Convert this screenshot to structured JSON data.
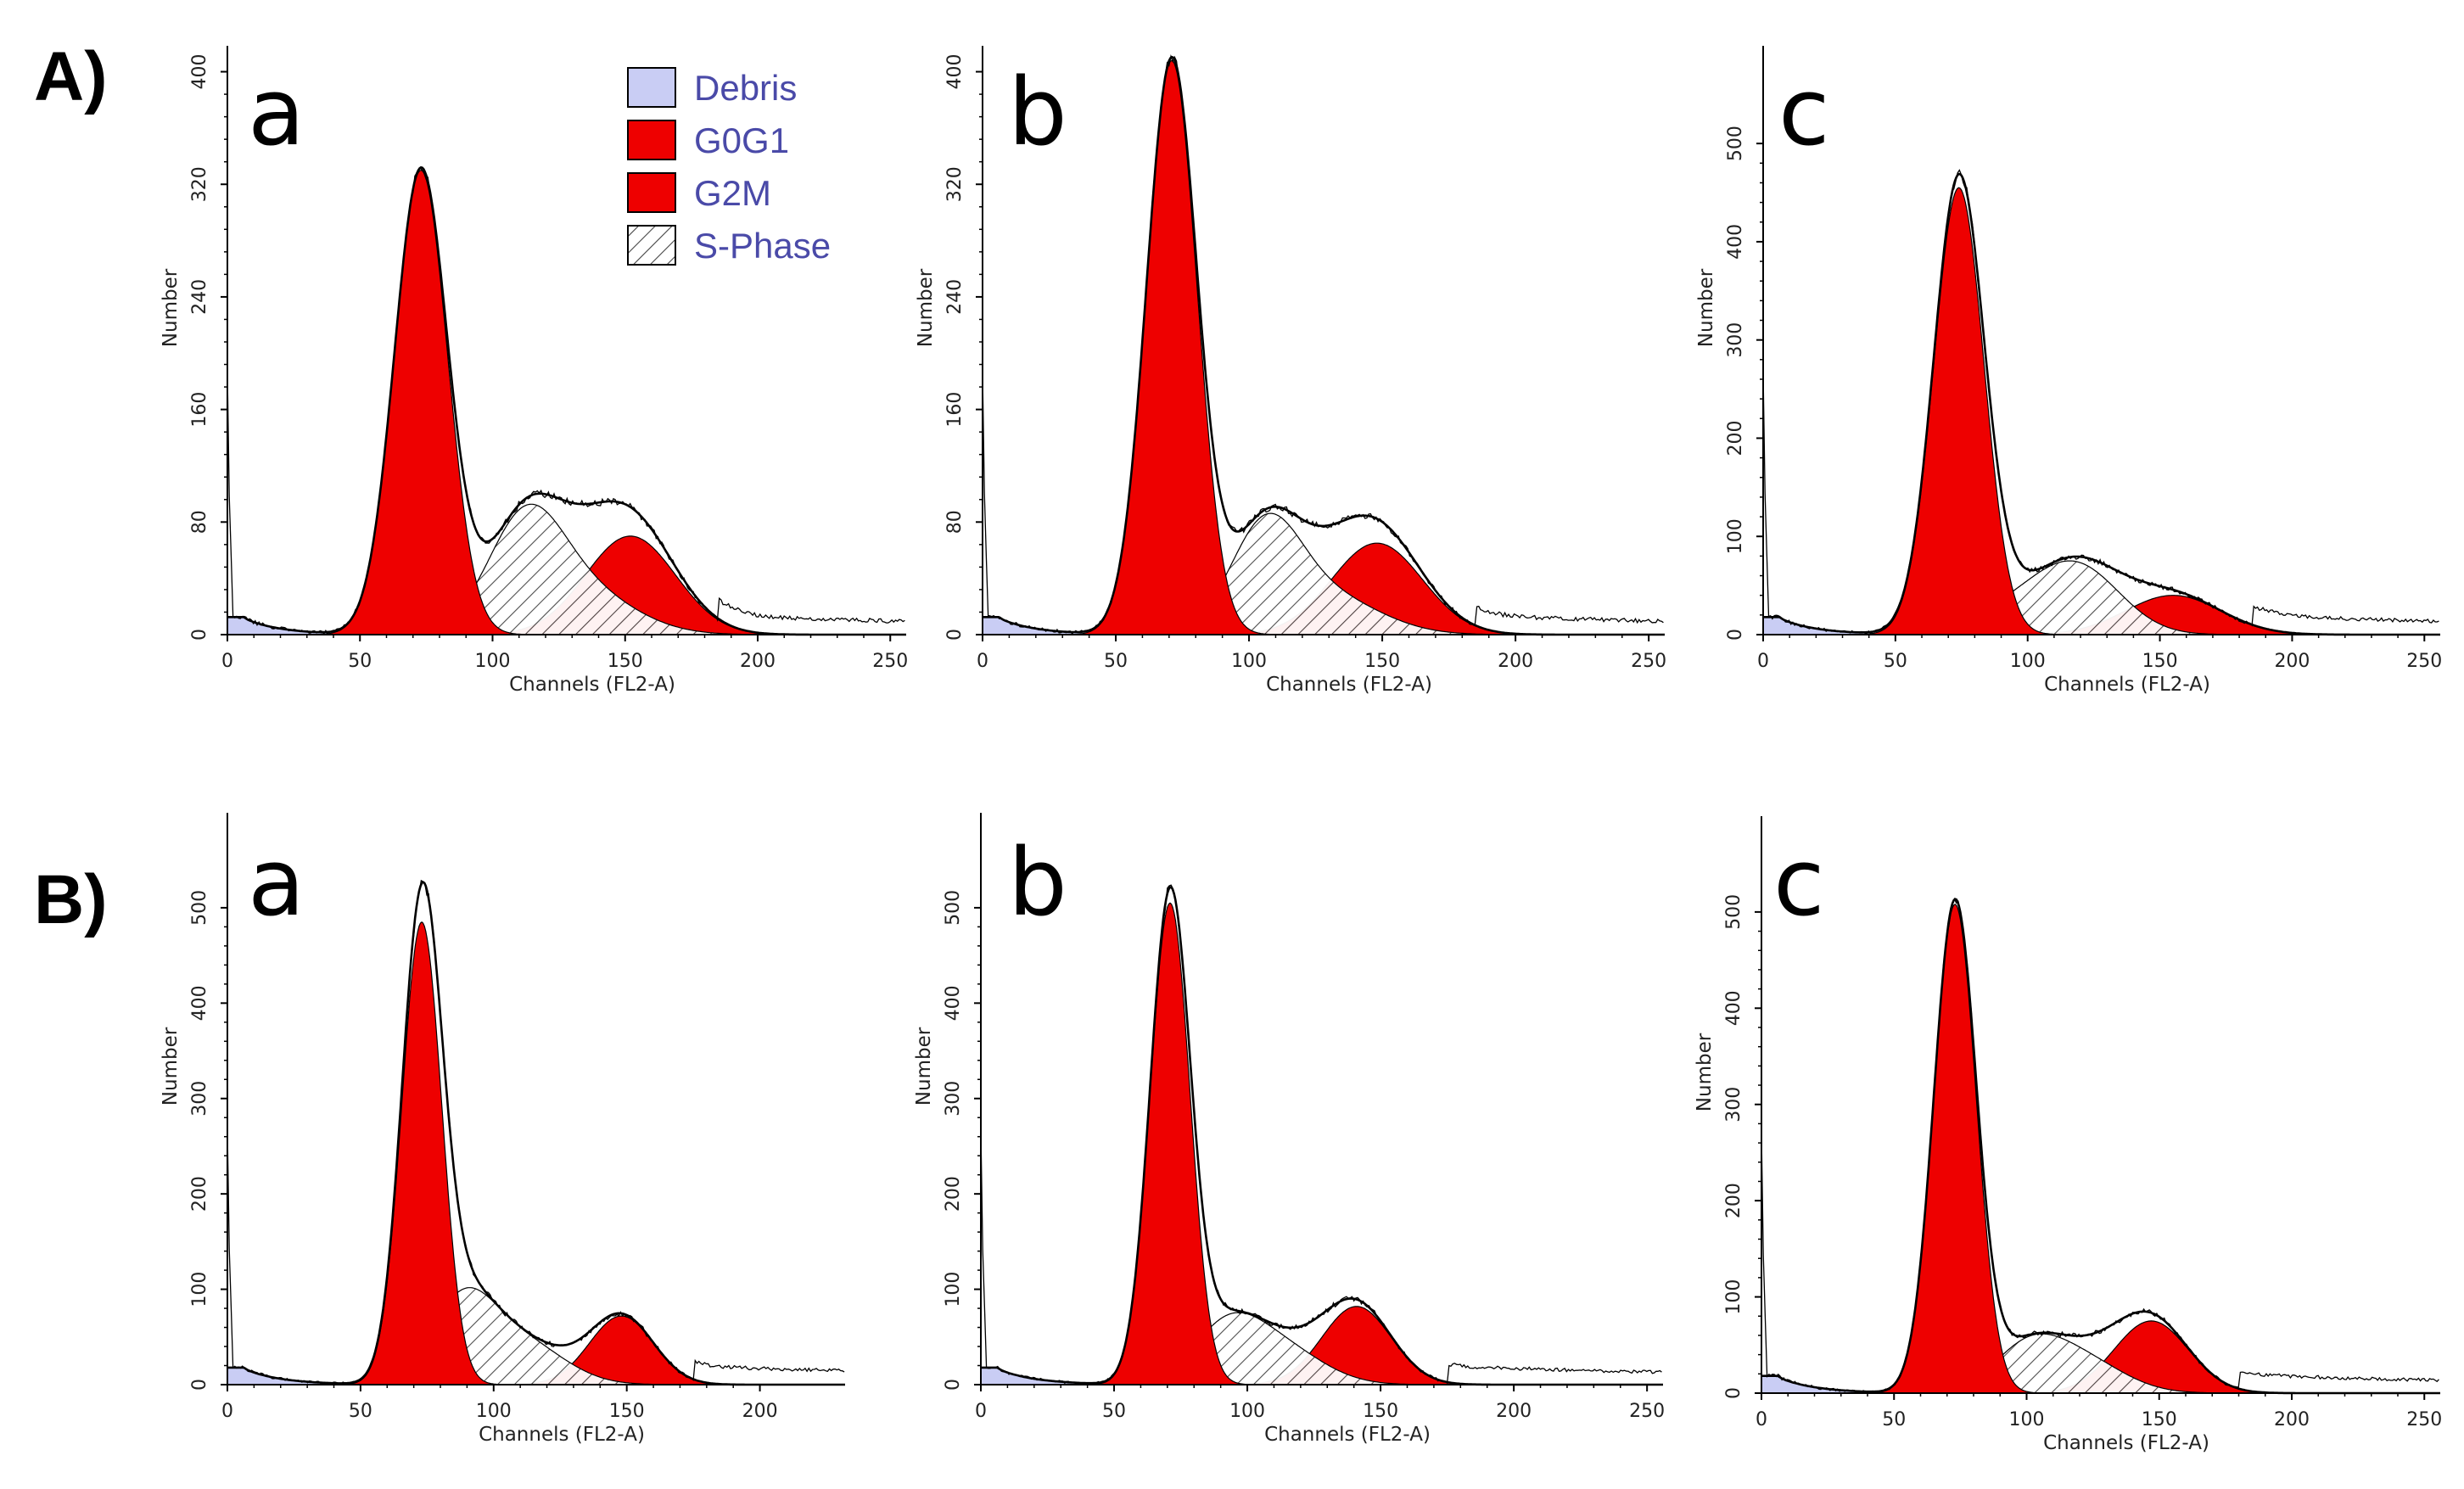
{
  "figure": {
    "row_labels": [
      "A)",
      "B)"
    ],
    "legend": {
      "entries": [
        {
          "label": "Debris",
          "fill": "#c9cdf4",
          "pattern": "solid"
        },
        {
          "label": "G0G1",
          "fill": "#ee0000",
          "pattern": "solid"
        },
        {
          "label": "G2M",
          "fill": "#ee0000",
          "pattern": "solid"
        },
        {
          "label": "S-Phase",
          "fill": "#ffffff",
          "pattern": "hatch"
        }
      ],
      "text_color": "#4a4aa8"
    },
    "colors": {
      "debris": "#c9cdf4",
      "g0g1": "#ee0000",
      "g2m": "#ee0000",
      "sphase_fill": "#ffffff",
      "hatch": "#333333",
      "line": "#000000"
    }
  },
  "chart_data": [
    {
      "id": "A-a",
      "row": "A)",
      "panel_label": "a",
      "type": "area",
      "xlabel": "Channels (FL2-A)",
      "ylabel": "Number",
      "xlim": [
        0,
        256
      ],
      "ylim": [
        0,
        416
      ],
      "xticks": [
        0,
        50,
        100,
        150,
        200,
        250
      ],
      "yticks": [
        0,
        80,
        160,
        240,
        320,
        400
      ],
      "series": [
        {
          "name": "Debris",
          "components": [
            [
              0,
              0,
              20,
              12
            ]
          ]
        },
        {
          "name": "G0G1",
          "components": [
            [
              330,
              73,
              10
            ]
          ]
        },
        {
          "name": "G2M",
          "components": [
            [
              70,
              152,
              17
            ]
          ]
        },
        {
          "name": "S-Phase",
          "components": [
            [
              72,
              112,
              14
            ],
            [
              32,
              132,
              20
            ]
          ]
        }
      ],
      "histogram_noise": 1,
      "tail": [
        15,
        185,
        256,
        12
      ]
    },
    {
      "id": "A-b",
      "row": "A)",
      "panel_label": "b",
      "type": "area",
      "xlabel": "Channels (FL2-A)",
      "ylabel": "Number",
      "xlim": [
        0,
        256
      ],
      "ylim": [
        0,
        416
      ],
      "xticks": [
        0,
        50,
        100,
        150,
        200,
        250
      ],
      "yticks": [
        0,
        80,
        160,
        240,
        320,
        400
      ],
      "series": [
        {
          "name": "Debris",
          "components": [
            [
              0,
              0,
              20,
              12
            ]
          ]
        },
        {
          "name": "G0G1",
          "components": [
            [
              408,
              71,
              9.5
            ]
          ]
        },
        {
          "name": "G2M",
          "components": [
            [
              65,
              148,
              17
            ]
          ]
        },
        {
          "name": "S-Phase",
          "components": [
            [
              70,
              106,
              13
            ],
            [
              28,
              128,
              20
            ]
          ]
        }
      ],
      "histogram_noise": 1,
      "tail": [
        15,
        185,
        256,
        12
      ]
    },
    {
      "id": "A-c",
      "row": "A)",
      "panel_label": "c",
      "type": "area",
      "xlabel": "Channels (FL2-A)",
      "ylabel": "Number",
      "xlim": [
        0,
        256
      ],
      "ylim": [
        0,
        596
      ],
      "xticks": [
        0,
        50,
        100,
        150,
        200,
        250
      ],
      "yticks": [
        0,
        100,
        200,
        300,
        400,
        500
      ],
      "series": [
        {
          "name": "Debris",
          "components": [
            [
              0,
              0,
              20,
              12
            ]
          ]
        },
        {
          "name": "G0G1",
          "components": [
            [
              455,
              74,
              9.5
            ]
          ]
        },
        {
          "name": "G2M",
          "components": [
            [
              40,
              155,
              18
            ]
          ]
        },
        {
          "name": "S-Phase",
          "components": [
            [
              55,
              120,
              16
            ],
            [
              30,
              100,
              20
            ]
          ]
        }
      ],
      "histogram_noise": 1,
      "tail": [
        15,
        185,
        256,
        12
      ]
    },
    {
      "id": "B-a",
      "row": "B)",
      "panel_label": "a",
      "type": "area",
      "xlabel": "Channels (FL2-A)",
      "ylabel": "Number",
      "xlim": [
        0,
        232
      ],
      "ylim": [
        0,
        596
      ],
      "xticks": [
        0,
        50,
        100,
        150,
        200
      ],
      "yticks": [
        0,
        100,
        200,
        300,
        400,
        500
      ],
      "series": [
        {
          "name": "Debris",
          "components": [
            [
              0,
              0,
              20,
              12
            ]
          ]
        },
        {
          "name": "G0G1",
          "components": [
            [
              485,
              73,
              7.5
            ]
          ]
        },
        {
          "name": "G2M",
          "components": [
            [
              72,
              148,
              12
            ]
          ]
        },
        {
          "name": "S-Phase",
          "components": [
            [
              82,
              88,
              12
            ],
            [
              45,
              110,
              16
            ]
          ]
        }
      ],
      "histogram_noise": 1,
      "tail": [
        15,
        175,
        232,
        12
      ]
    },
    {
      "id": "B-b",
      "row": "B)",
      "panel_label": "b",
      "type": "area",
      "xlabel": "Channels (FL2-A)",
      "ylabel": "Number",
      "xlim": [
        0,
        256
      ],
      "ylim": [
        0,
        596
      ],
      "xticks": [
        0,
        50,
        100,
        150,
        200,
        250
      ],
      "yticks": [
        0,
        100,
        200,
        300,
        400,
        500
      ],
      "series": [
        {
          "name": "Debris",
          "components": [
            [
              0,
              0,
              20,
              12
            ]
          ]
        },
        {
          "name": "G0G1",
          "components": [
            [
              505,
              71,
              7.5
            ]
          ]
        },
        {
          "name": "G2M",
          "components": [
            [
              82,
              141,
              13
            ]
          ]
        },
        {
          "name": "S-Phase",
          "components": [
            [
              55,
              92,
              13
            ],
            [
              38,
              112,
              16
            ]
          ]
        }
      ],
      "histogram_noise": 1,
      "tail": [
        15,
        175,
        256,
        12
      ]
    },
    {
      "id": "B-c",
      "row": "B)",
      "panel_label": "c",
      "type": "area",
      "xlabel": "Channels (FL2-A)",
      "ylabel": "Number",
      "xlim": [
        0,
        256
      ],
      "ylim": [
        0,
        596
      ],
      "xticks": [
        0,
        50,
        100,
        150,
        200,
        250
      ],
      "yticks": [
        0,
        100,
        200,
        300,
        400,
        500
      ],
      "series": [
        {
          "name": "Debris",
          "components": [
            [
              0,
              0,
              20,
              12
            ]
          ]
        },
        {
          "name": "G0G1",
          "components": [
            [
              508,
              73,
              8
            ]
          ]
        },
        {
          "name": "G2M",
          "components": [
            [
              75,
              147,
              14
            ]
          ]
        },
        {
          "name": "S-Phase",
          "components": [
            [
              42,
              100,
              13
            ],
            [
              35,
              120,
              16
            ]
          ]
        }
      ],
      "histogram_noise": 1,
      "tail": [
        15,
        180,
        256,
        12
      ]
    }
  ]
}
